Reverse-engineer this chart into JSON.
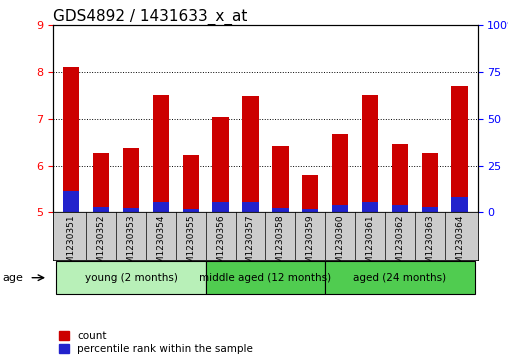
{
  "title": "GDS4892 / 1431633_x_at",
  "samples": [
    "GSM1230351",
    "GSM1230352",
    "GSM1230353",
    "GSM1230354",
    "GSM1230355",
    "GSM1230356",
    "GSM1230357",
    "GSM1230358",
    "GSM1230359",
    "GSM1230360",
    "GSM1230361",
    "GSM1230362",
    "GSM1230363",
    "GSM1230364"
  ],
  "count_values": [
    8.12,
    6.27,
    6.38,
    7.52,
    6.22,
    7.05,
    7.5,
    6.43,
    5.8,
    6.68,
    7.52,
    6.47,
    6.27,
    7.7
  ],
  "percentile_values": [
    5.45,
    5.12,
    5.1,
    5.23,
    5.08,
    5.22,
    5.22,
    5.1,
    5.08,
    5.15,
    5.22,
    5.15,
    5.12,
    5.32
  ],
  "ylim_left": [
    5,
    9
  ],
  "ylim_right": [
    0,
    100
  ],
  "yticks_left": [
    5,
    6,
    7,
    8,
    9
  ],
  "yticks_right": [
    0,
    25,
    50,
    75,
    100
  ],
  "bar_color_red": "#CC0000",
  "bar_color_blue": "#2222CC",
  "group_definitions": [
    {
      "label": "young (2 months)",
      "start": 0,
      "end": 5,
      "color": "#b8f0b8"
    },
    {
      "label": "middle aged (12 months)",
      "start": 5,
      "end": 9,
      "color": "#50cc50"
    },
    {
      "label": "aged (24 months)",
      "start": 9,
      "end": 14,
      "color": "#50cc50"
    }
  ],
  "legend_count": "count",
  "legend_pct": "percentile rank within the sample",
  "title_fontsize": 11,
  "bar_width": 0.55
}
